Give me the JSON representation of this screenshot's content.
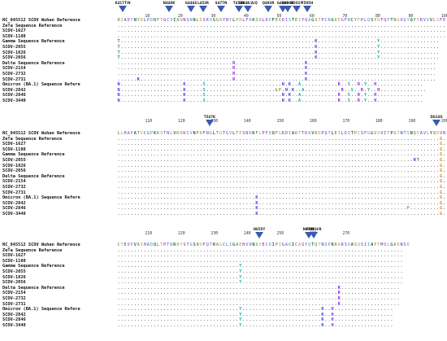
{
  "blocks": [
    {
      "ruler": [
        "10",
        "20",
        "30",
        "40",
        "50",
        "60",
        "70",
        "80",
        "90",
        "100"
      ],
      "mutations": [
        "K417T/N",
        "N440K",
        "G446S",
        "L452R",
        "S477N",
        "T478K",
        "E484K/A/Q",
        "Q493R",
        "G496S",
        "Q498R",
        "N501Y",
        "Y505H"
      ],
      "rows": [
        {
          "name": "NC_045512 SCOV Wuhan Reference",
          "seq": "RIADYNYKLPDDFTGCVIAWNSNNLDSKVGGNYNYLYRLFRKSNLKPFERDISTEIYQAGSTPCNGVEGFNCYFPLQSYGFQPTNGVGYQPYRVVVLSFE",
          "ref": true
        },
        {
          "name": "ZeTa Sequence Reference",
          "seq": "...................................................................................................."
        },
        {
          "name": "SCOV-1627",
          "seq": "...................................................................................................."
        },
        {
          "name": "SCOV-1108",
          "seq": "...................................................................................................."
        },
        {
          "name": "Gamma Sequence Reference",
          "seq": "T...........................................................K..................Y.................."
        },
        {
          "name": "SCOV-2055",
          "seq": "T...........................................................K..................Y.................."
        },
        {
          "name": "SCOV-1826",
          "seq": "T...........................................................K..................Y.................."
        },
        {
          "name": "SCOV-2056",
          "seq": "T...........................................................K..................Y.................."
        },
        {
          "name": "Delta Sequence Reference",
          "seq": "...................................R.....................K......................................."
        },
        {
          "name": "SCOV-2154",
          "seq": "...................................R.....................K......................................."
        },
        {
          "name": "SCOV-2732",
          "seq": "...................................R.....................K......................................."
        },
        {
          "name": "SCOV-2731",
          "seq": "......K............................R.....................K......................................."
        },
        {
          "name": "Omicron (BA.1) Sequence Refere",
          "seq": "N...................K.....S.......................N.K..A...........R..S..R.Y..H.............."
        },
        {
          "name": "SCOV-2842",
          "seq": "N...................K.....S.....................LP.N.K..A...........R..S..R.Y..H.............."
        },
        {
          "name": "SCOV-2846",
          "seq": "N...................K.....S.......................N.K..A...........R..S..R.Y..H.............."
        },
        {
          "name": "SCOV-3440",
          "seq": "N...................K.....S.......................N.K..A...........R..S..R.Y..H.............."
        }
      ]
    },
    {
      "ruler": [
        "110",
        "120",
        "130",
        "140",
        "150",
        "160",
        "170",
        "180",
        "190",
        "200"
      ],
      "mutations": [
        "T547K",
        "D614G"
      ],
      "rows": [
        {
          "name": "NC_045512 SCOV Wuhan Reference",
          "seq": "LLHAPATVCGPKKSTNLVKNKCVNFNFNGLTGTGVLTESNKKFLPFQQFGRDIADTTDAVRDPQTLEILDITPCSFGGVSVITPGTNTSNQVAVLYQDVN",
          "ref": true
        },
        {
          "name": "ZeTa Sequence Reference",
          "seq": "..................................................................................................G."
        },
        {
          "name": "SCOV-1627",
          "seq": "..................................................................................................G."
        },
        {
          "name": "SCOV-1108",
          "seq": "..................................................................................................G."
        },
        {
          "name": "Gamma Sequence Reference",
          "seq": "..................................................................................................G."
        },
        {
          "name": "SCOV-2055",
          "seq": "..........................................................................................NT......G."
        },
        {
          "name": "SCOV-1826",
          "seq": "..................................................................................................G."
        },
        {
          "name": "SCOV-2056",
          "seq": "..................................................................................................G."
        },
        {
          "name": "Delta Sequence Reference",
          "seq": "..................................................................................................G."
        },
        {
          "name": "SCOV-2154",
          "seq": "..................................................................................................G."
        },
        {
          "name": "SCOV-2732",
          "seq": "..................................................................................................G."
        },
        {
          "name": "SCOV-2731",
          "seq": "..................................................................................................G."
        },
        {
          "name": "Omicron (BA.1) Sequence Refere",
          "seq": "..........................................K.......................................................G."
        },
        {
          "name": "SCOV-2842",
          "seq": "..........................................K.......................................................G."
        },
        {
          "name": "SCOV-2846",
          "seq": "..........................................K.............................................P.........G."
        },
        {
          "name": "SCOV-3440",
          "seq": "..........................................K.......................................................G."
        }
      ]
    },
    {
      "ruler": [
        "210",
        "220",
        "230",
        "240",
        "250",
        "260",
        "270"
      ],
      "mutations": [
        "H655Y",
        "P681H/R",
        "N679K"
      ],
      "rows": [
        {
          "name": "NC_045512 SCOV Wuhan Reference",
          "seq": "CTEVPVAIHADQLTPTWRVYSTGSNVFQTRAGCLIGAEHVNNSYECDIPIGAGICASYQTQTNSPRRARSVASQSIIAYTMSLGAENSV",
          "ref": true
        },
        {
          "name": "ZeTa Sequence Reference",
          "seq": "......................................................................................."
        },
        {
          "name": "SCOV-1627",
          "seq": "......................................................................................."
        },
        {
          "name": "SCOV-1108",
          "seq": "......................................................................................."
        },
        {
          "name": "Gamma Sequence Reference",
          "seq": ".....................................Y................................................."
        },
        {
          "name": "SCOV-2055",
          "seq": ".....................................Y................................................."
        },
        {
          "name": "SCOV-1826",
          "seq": ".....................................Y................................................."
        },
        {
          "name": "SCOV-2056",
          "seq": ".....................................Y................................................."
        },
        {
          "name": "Delta Sequence Reference",
          "seq": "...................................................................R.................."
        },
        {
          "name": "SCOV-2154",
          "seq": "...................................................................R.................."
        },
        {
          "name": "SCOV-2732",
          "seq": "...................................................................R.................."
        },
        {
          "name": "SCOV-2731",
          "seq": "...................................................................R.................."
        },
        {
          "name": "Omicron (BA.1) Sequence Refere",
          "seq": ".....................................Y........................K..H.................."
        },
        {
          "name": "SCOV-2842",
          "seq": ".....................................Y........................K..H.................."
        },
        {
          "name": "SCOV-2846",
          "seq": ".....................................Y........................K..H.................."
        },
        {
          "name": "SCOV-3440",
          "seq": ".....................................Y........................K..H.................."
        }
      ]
    }
  ],
  "colors": {
    "ref_highlight": "#ffe066",
    "marker": "#3a5ab0",
    "mut_blue": "#3b3bd6",
    "mut_purple": "#8a2be2",
    "mut_teal": "#1aa6a6"
  }
}
